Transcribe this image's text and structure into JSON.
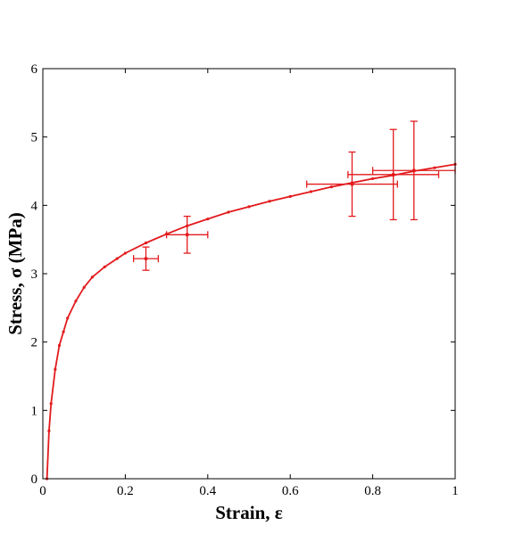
{
  "chart_data": {
    "type": "scatter",
    "title": "",
    "xlabel": "Strain, ε",
    "ylabel": "Stress, σ (MPa)",
    "xlim": [
      0,
      1
    ],
    "ylim": [
      0,
      6
    ],
    "x_ticks": [
      "0",
      "0.2",
      "0.4",
      "0.6",
      "0.8",
      "1"
    ],
    "y_ticks": [
      "0",
      "1",
      "2",
      "3",
      "4",
      "5",
      "6"
    ],
    "grid": false,
    "legend": "none",
    "color": "#e31a1c",
    "fit_curve": {
      "x": [
        0.01,
        0.015,
        0.02,
        0.03,
        0.04,
        0.05,
        0.06,
        0.08,
        0.1,
        0.12,
        0.15,
        0.18,
        0.2,
        0.25,
        0.3,
        0.35,
        0.4,
        0.45,
        0.5,
        0.55,
        0.6,
        0.65,
        0.7,
        0.75,
        0.8,
        0.85,
        0.9,
        0.95,
        1.0
      ],
      "y": [
        0,
        0.7,
        1.1,
        1.6,
        1.95,
        2.15,
        2.35,
        2.6,
        2.8,
        2.95,
        3.1,
        3.22,
        3.3,
        3.45,
        3.58,
        3.7,
        3.8,
        3.9,
        3.98,
        4.06,
        4.13,
        4.2,
        4.27,
        4.33,
        4.39,
        4.44,
        4.5,
        4.55,
        4.6
      ]
    },
    "series": [
      {
        "points": [
          {
            "x": 0.25,
            "y": 3.22,
            "xerr": 0.03,
            "yerr": 0.17
          },
          {
            "x": 0.35,
            "y": 3.57,
            "xerr": 0.05,
            "yerr": 0.27
          },
          {
            "x": 0.75,
            "y": 4.31,
            "xerr": 0.11,
            "yerr": 0.47
          },
          {
            "x": 0.85,
            "y": 4.45,
            "xerr": 0.11,
            "yerr": 0.66
          },
          {
            "x": 0.9,
            "y": 4.51,
            "xerr": 0.1,
            "yerr": 0.72
          }
        ]
      }
    ]
  }
}
